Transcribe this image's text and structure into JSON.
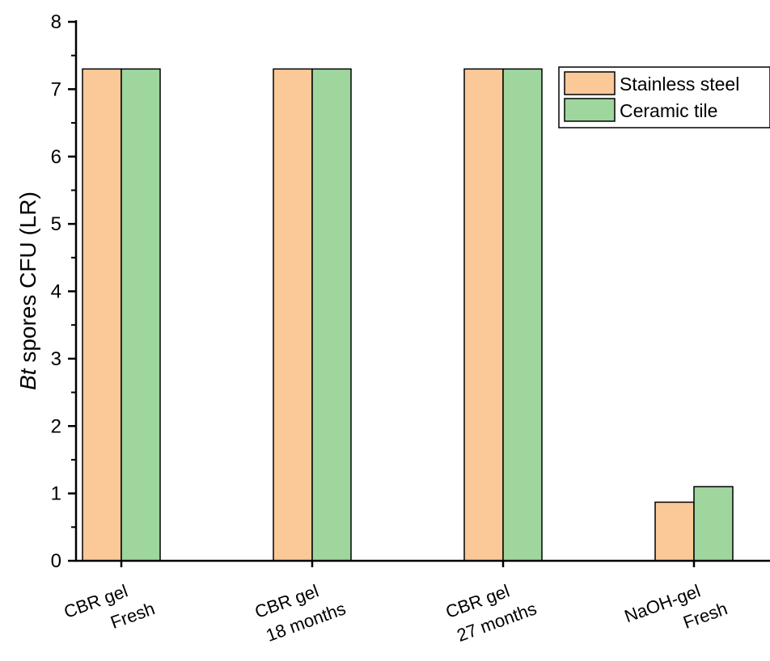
{
  "chart_data": {
    "type": "bar",
    "title": "",
    "xlabel": "",
    "ylabel": {
      "italic": "Bt",
      "rest": " spores CFU (LR)"
    },
    "ylim": [
      0,
      8
    ],
    "yticks": [
      "0",
      "1",
      "2",
      "3",
      "4",
      "5",
      "6",
      "7",
      "8"
    ],
    "categories": [
      [
        "CBR gel",
        "Fresh"
      ],
      [
        "CBR gel",
        "18 months"
      ],
      [
        "CBR gel",
        "27 months"
      ],
      [
        "NaOH-gel",
        "Fresh"
      ]
    ],
    "series": [
      {
        "name": "Stainless steel",
        "color": "#fbc898",
        "values": [
          7.3,
          7.3,
          7.3,
          0.87
        ]
      },
      {
        "name": "Ceramic tile",
        "color": "#9ed69d",
        "values": [
          7.3,
          7.3,
          7.3,
          1.1
        ]
      }
    ],
    "legend_position": "top-right",
    "grid": false
  }
}
